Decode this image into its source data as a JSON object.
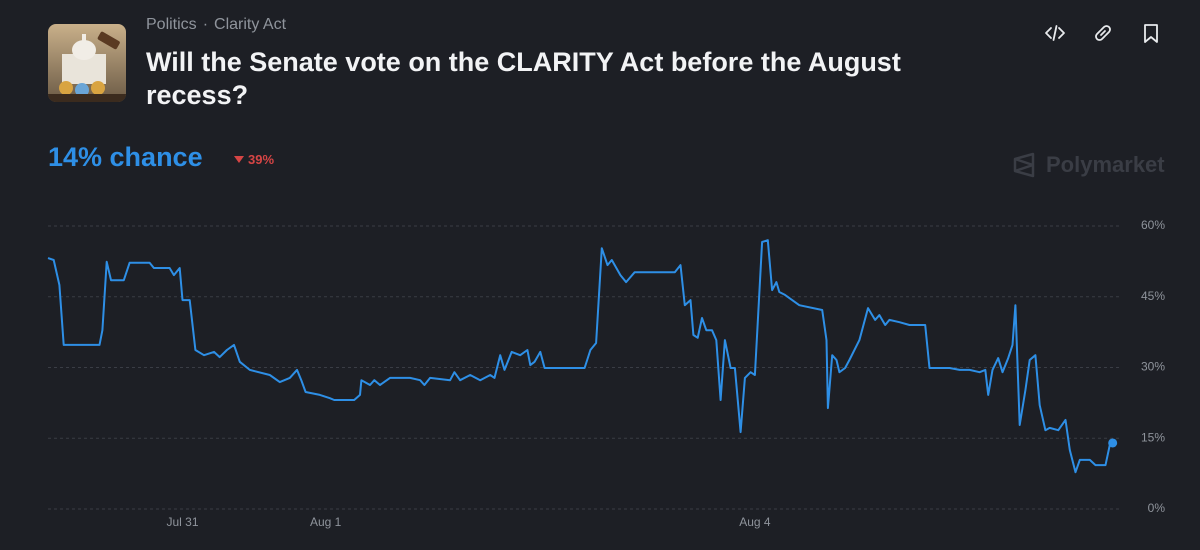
{
  "header": {
    "category": "Politics",
    "tag": "Clarity Act",
    "title": "Will the Senate vote on the CLARITY Act before the August recess?",
    "chance": "14% chance",
    "change": "39%",
    "brand": "Polymarket"
  },
  "chart_data": {
    "type": "line",
    "x": [
      -0.94,
      -0.9,
      -0.86,
      -0.83,
      -0.58,
      -0.56,
      -0.53,
      -0.5,
      -0.41,
      -0.37,
      -0.23,
      -0.2,
      -0.09,
      -0.06,
      -0.02,
      0,
      0.05,
      0.09,
      0.15,
      0.22,
      0.26,
      0.31,
      0.36,
      0.4,
      0.47,
      0.61,
      0.68,
      0.75,
      0.8,
      0.83,
      0.86,
      0.96,
      1.03,
      1.06,
      1.2,
      1.24,
      1.25,
      1.31,
      1.34,
      1.38,
      1.45,
      1.59,
      1.66,
      1.69,
      1.73,
      1.87,
      1.9,
      1.94,
      2.01,
      2.08,
      2.15,
      2.18,
      2.22,
      2.25,
      2.3,
      2.36,
      2.41,
      2.43,
      2.46,
      2.5,
      2.53,
      2.81,
      2.85,
      2.89,
      2.93,
      2.97,
      3.0,
      3.06,
      3.1,
      3.16,
      3.44,
      3.48,
      3.51,
      3.55,
      3.57,
      3.6,
      3.63,
      3.66,
      3.7,
      3.73,
      3.76,
      3.79,
      3.83,
      3.86,
      3.9,
      3.93,
      3.97,
      4.0,
      4.05,
      4.09,
      4.12,
      4.15,
      4.17,
      4.21,
      4.31,
      4.47,
      4.5,
      4.51,
      4.54,
      4.57,
      4.59,
      4.63,
      4.66,
      4.73,
      4.79,
      4.84,
      4.87,
      4.91,
      4.94,
      5.01,
      5.08,
      5.19,
      5.22,
      5.36,
      5.43,
      5.5,
      5.57,
      5.61,
      5.63,
      5.66,
      5.7,
      5.73,
      5.77,
      5.8,
      5.82,
      5.85,
      5.89,
      5.92,
      5.96,
      5.99,
      6.03,
      6.06,
      6.12,
      6.17,
      6.2,
      6.24,
      6.27,
      6.34,
      6.38,
      6.45,
      6.48,
      6.5
    ],
    "series": [
      {
        "color": "#2e8fe6",
        "values": [
          53.2,
          52.8,
          47.5,
          34.8,
          34.8,
          37.9,
          52.4,
          48.5,
          48.5,
          52.2,
          52.2,
          51.1,
          51.1,
          49.6,
          51.1,
          44.3,
          44.3,
          33.7,
          32.6,
          33.3,
          32.2,
          33.7,
          34.8,
          31.2,
          29.5,
          28.4,
          26.9,
          27.8,
          29.5,
          27.3,
          24.8,
          24.2,
          23.5,
          23.1,
          23.1,
          24.2,
          27.3,
          26.3,
          27.3,
          26.3,
          27.8,
          27.8,
          27.3,
          26.3,
          27.8,
          27.3,
          29.0,
          27.3,
          28.4,
          27.3,
          28.4,
          27.8,
          32.6,
          29.5,
          33.3,
          32.6,
          33.7,
          30.5,
          31.2,
          33.3,
          29.9,
          29.9,
          33.7,
          35.2,
          55.3,
          51.7,
          52.8,
          49.6,
          48.1,
          50.2,
          50.2,
          51.7,
          43.2,
          44.3,
          36.9,
          36.3,
          40.5,
          37.9,
          37.9,
          35.8,
          23.1,
          35.8,
          29.9,
          29.9,
          16.3,
          27.8,
          29.0,
          28.4,
          56.6,
          57.0,
          46.4,
          48.1,
          46.0,
          45.4,
          43.2,
          42.2,
          35.8,
          21.4,
          32.6,
          31.6,
          29.0,
          29.9,
          31.6,
          35.8,
          42.6,
          40.1,
          41.1,
          39.0,
          40.1,
          39.6,
          39.0,
          39.0,
          29.9,
          29.9,
          29.5,
          29.5,
          29.0,
          29.5,
          24.2,
          29.5,
          32.0,
          29.0,
          32.0,
          34.8,
          43.2,
          17.8,
          25.2,
          31.6,
          32.6,
          22.0,
          16.7,
          17.2,
          16.7,
          18.9,
          12.5,
          7.8,
          10.4,
          10.4,
          9.3,
          9.3,
          13.6,
          14
        ]
      }
    ],
    "xlim": [
      -0.94,
      6.6
    ],
    "xticks": [
      {
        "value": 0,
        "label": "Jul 31"
      },
      {
        "value": 1,
        "label": "Aug 1"
      },
      {
        "value": 4,
        "label": "Aug 4"
      }
    ],
    "ylim": [
      0,
      60
    ],
    "yticks": [
      {
        "value": 0,
        "label": "0%"
      },
      {
        "value": 15,
        "label": "15%"
      },
      {
        "value": 30,
        "label": "30%"
      },
      {
        "value": 45,
        "label": "45%"
      },
      {
        "value": 60,
        "label": "60%"
      }
    ],
    "grid": true
  }
}
